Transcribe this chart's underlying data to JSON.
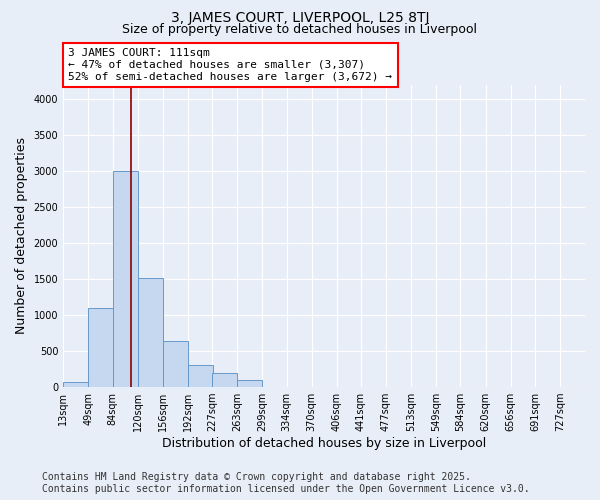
{
  "title": "3, JAMES COURT, LIVERPOOL, L25 8TJ",
  "subtitle": "Size of property relative to detached houses in Liverpool",
  "xlabel": "Distribution of detached houses by size in Liverpool",
  "ylabel": "Number of detached properties",
  "annotation_line1": "3 JAMES COURT: 111sqm",
  "annotation_line2": "← 47% of detached houses are smaller (3,307)",
  "annotation_line3": "52% of semi-detached houses are larger (3,672) →",
  "footnote1": "Contains HM Land Registry data © Crown copyright and database right 2025.",
  "footnote2": "Contains public sector information licensed under the Open Government Licence v3.0.",
  "bin_labels": [
    "13sqm",
    "49sqm",
    "84sqm",
    "120sqm",
    "156sqm",
    "192sqm",
    "227sqm",
    "263sqm",
    "299sqm",
    "334sqm",
    "370sqm",
    "406sqm",
    "441sqm",
    "477sqm",
    "513sqm",
    "549sqm",
    "584sqm",
    "620sqm",
    "656sqm",
    "691sqm",
    "727sqm"
  ],
  "bin_edges": [
    13,
    49,
    84,
    120,
    156,
    192,
    227,
    263,
    299,
    334,
    370,
    406,
    441,
    477,
    513,
    549,
    584,
    620,
    656,
    691,
    727
  ],
  "bar_values": [
    75,
    1100,
    3000,
    1520,
    640,
    310,
    200,
    100,
    0,
    0,
    0,
    0,
    0,
    0,
    0,
    0,
    0,
    0,
    0,
    0,
    0
  ],
  "bar_color": "#c5d8ef",
  "bar_edge_color": "#6699cc",
  "red_line_x": 111,
  "ylim": [
    0,
    4200
  ],
  "yticks": [
    0,
    500,
    1000,
    1500,
    2000,
    2500,
    3000,
    3500,
    4000
  ],
  "bg_color": "#e8eef7",
  "plot_bg_color": "#e8eef7",
  "grid_color": "#ffffff",
  "title_fontsize": 10,
  "subtitle_fontsize": 9,
  "axis_label_fontsize": 9,
  "tick_fontsize": 7,
  "footnote_fontsize": 7
}
